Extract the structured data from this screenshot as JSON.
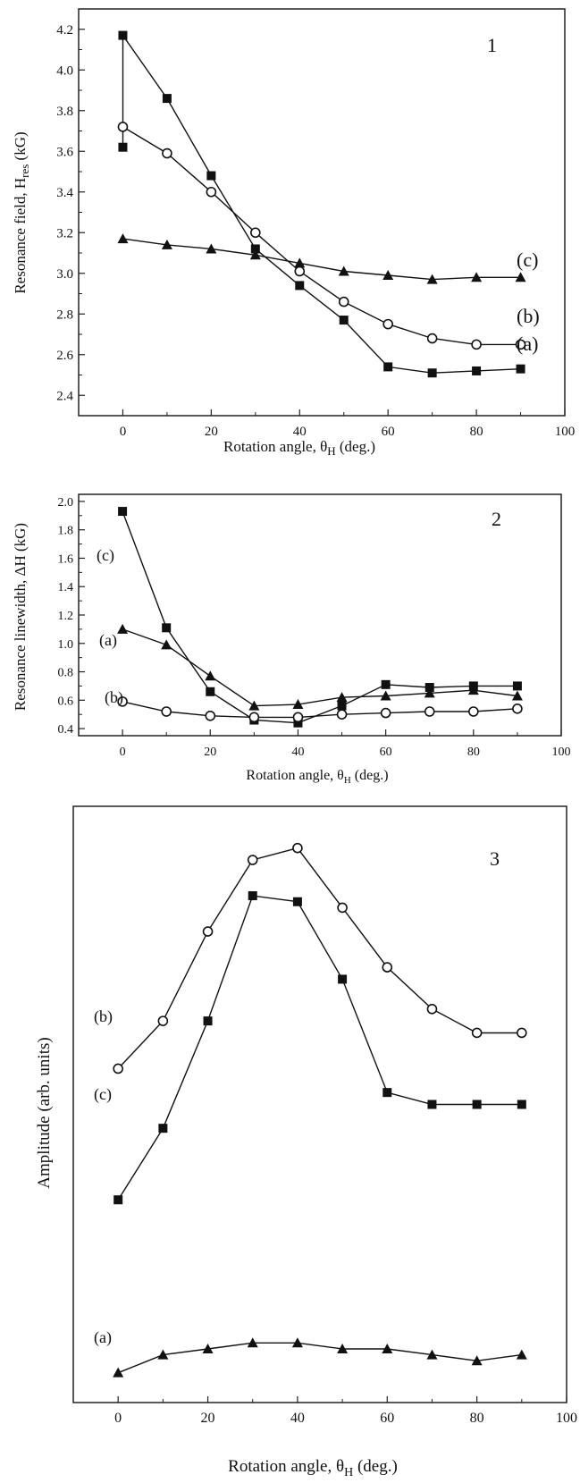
{
  "chart_data": [
    {
      "type": "line",
      "panel_number": "1",
      "xlabel": "Rotation angle, θH (deg.)",
      "xlabel_main": "Rotation angle, θ",
      "xlabel_sub": "H",
      "xlabel_tail": " (deg.)",
      "ylabel": "Resonance field, Hres (kG)",
      "ylabel_main": "Resonance field, H",
      "ylabel_sub": "res",
      "ylabel_tail": " (kG)",
      "xlim": [
        -10,
        100
      ],
      "ylim": [
        2.3,
        4.3
      ],
      "x_ticks": [
        "0",
        "20",
        "40",
        "60",
        "80",
        "100"
      ],
      "x_tick_values": [
        0,
        20,
        40,
        60,
        80,
        100
      ],
      "y_ticks": [
        "2.4",
        "2.6",
        "2.8",
        "3.0",
        "3.2",
        "3.4",
        "3.6",
        "3.8",
        "4.0",
        "4.2"
      ],
      "y_tick_values": [
        2.4,
        2.6,
        2.8,
        3.0,
        3.2,
        3.4,
        3.6,
        3.8,
        4.0,
        4.2
      ],
      "x": [
        0,
        10,
        20,
        30,
        40,
        50,
        60,
        70,
        80,
        90
      ],
      "series": [
        {
          "label": "(a)",
          "marker": "square",
          "x": [
            0,
            0,
            10,
            20,
            30,
            40,
            50,
            60,
            70,
            80,
            90
          ],
          "values": [
            3.62,
            4.17,
            3.86,
            3.48,
            3.12,
            2.94,
            2.77,
            2.54,
            2.51,
            2.52,
            2.53
          ]
        },
        {
          "label": "(b)",
          "marker": "circle",
          "values": [
            3.72,
            3.59,
            3.4,
            3.2,
            3.01,
            2.86,
            2.75,
            2.68,
            2.65,
            2.65
          ]
        },
        {
          "label": "(c)",
          "marker": "triangle",
          "values": [
            3.17,
            3.14,
            3.12,
            3.09,
            3.05,
            3.01,
            2.99,
            2.97,
            2.98,
            2.98
          ]
        }
      ]
    },
    {
      "type": "line",
      "panel_number": "2",
      "xlabel": "Rotation angle, θH (deg.)",
      "xlabel_main": "Rotation angle, θ",
      "xlabel_sub": "H",
      "xlabel_tail": " (deg.)",
      "ylabel": "Resonance linewidth, ΔH (kG)",
      "xlim": [
        -10,
        100
      ],
      "ylim": [
        0.35,
        2.05
      ],
      "x_ticks": [
        "0",
        "20",
        "40",
        "60",
        "80",
        "100"
      ],
      "x_tick_values": [
        0,
        20,
        40,
        60,
        80,
        100
      ],
      "y_ticks": [
        "0.4",
        "0.6",
        "0.8",
        "1.0",
        "1.2",
        "1.4",
        "1.6",
        "1.8",
        "2.0"
      ],
      "y_tick_values": [
        0.4,
        0.6,
        0.8,
        1.0,
        1.2,
        1.4,
        1.6,
        1.8,
        2.0
      ],
      "x": [
        0,
        10,
        20,
        30,
        40,
        50,
        60,
        70,
        80,
        90
      ],
      "series": [
        {
          "label": "(c)",
          "marker": "square",
          "values": [
            1.93,
            1.11,
            0.66,
            0.46,
            0.44,
            0.56,
            0.71,
            0.69,
            0.7,
            0.7
          ]
        },
        {
          "label": "(a)",
          "marker": "triangle",
          "values": [
            1.1,
            0.99,
            0.77,
            0.56,
            0.57,
            0.62,
            0.63,
            0.65,
            0.67,
            0.63
          ]
        },
        {
          "label": "(b)",
          "marker": "circle",
          "values": [
            0.59,
            0.52,
            0.49,
            0.48,
            0.48,
            0.5,
            0.51,
            0.52,
            0.52,
            0.54
          ]
        }
      ]
    },
    {
      "type": "line",
      "panel_number": "3",
      "xlabel": "Rotation angle, θH (deg.)",
      "xlabel_main": "Rotation angle, θ",
      "xlabel_sub": "H",
      "xlabel_tail": " (deg.)",
      "ylabel": "Amplitude (arb. units)",
      "xlim": [
        -10,
        100
      ],
      "ylim": [
        0,
        1
      ],
      "x_ticks": [
        "0",
        "20",
        "40",
        "60",
        "80",
        "100"
      ],
      "x_tick_values": [
        0,
        20,
        40,
        60,
        80,
        100
      ],
      "y_ticks": [],
      "x": [
        0,
        10,
        20,
        30,
        40,
        50,
        60,
        70,
        80,
        90
      ],
      "series": [
        {
          "label": "(b)",
          "marker": "circle",
          "values": [
            0.56,
            0.64,
            0.79,
            0.91,
            0.93,
            0.83,
            0.73,
            0.66,
            0.62,
            0.62
          ]
        },
        {
          "label": "(c)",
          "marker": "square",
          "values": [
            0.34,
            0.46,
            0.64,
            0.85,
            0.84,
            0.71,
            0.52,
            0.5,
            0.5,
            0.5
          ]
        },
        {
          "label": "(a)",
          "marker": "triangle",
          "values": [
            0.05,
            0.08,
            0.09,
            0.1,
            0.1,
            0.09,
            0.09,
            0.08,
            0.07,
            0.08
          ]
        }
      ]
    }
  ]
}
